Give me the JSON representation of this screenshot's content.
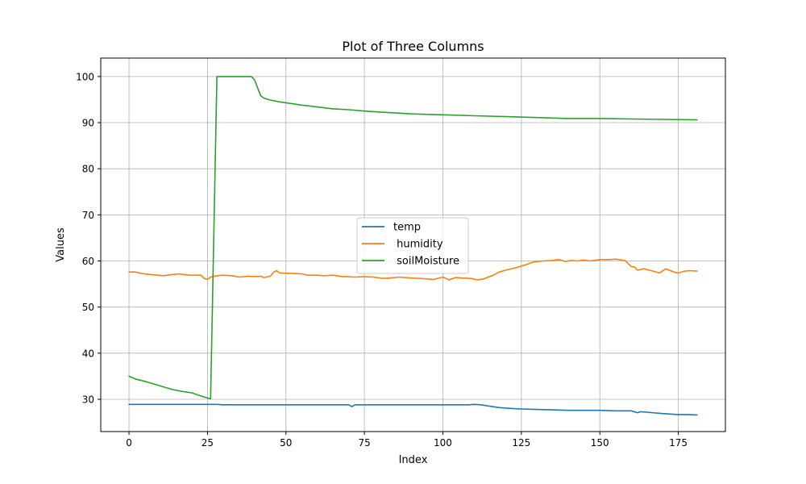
{
  "chart_data": {
    "type": "line",
    "title": "Plot of Three Columns",
    "xlabel": "Index",
    "ylabel": "Values",
    "xlim": [
      -9,
      190
    ],
    "ylim": [
      23,
      104
    ],
    "xticks": [
      0,
      25,
      50,
      75,
      100,
      125,
      150,
      175
    ],
    "yticks": [
      30,
      40,
      50,
      60,
      70,
      80,
      90,
      100
    ],
    "grid": true,
    "legend_position": "center",
    "series": [
      {
        "name": "temp",
        "color": "#1f77b4",
        "points": [
          [
            0,
            28.9
          ],
          [
            20,
            28.9
          ],
          [
            28,
            28.9
          ],
          [
            30,
            28.8
          ],
          [
            70,
            28.8
          ],
          [
            71,
            28.4
          ],
          [
            72,
            28.8
          ],
          [
            108,
            28.8
          ],
          [
            110,
            28.9
          ],
          [
            112,
            28.8
          ],
          [
            115,
            28.5
          ],
          [
            118,
            28.2
          ],
          [
            122,
            28.0
          ],
          [
            125,
            27.9
          ],
          [
            130,
            27.8
          ],
          [
            135,
            27.7
          ],
          [
            140,
            27.6
          ],
          [
            150,
            27.6
          ],
          [
            155,
            27.5
          ],
          [
            160,
            27.5
          ],
          [
            162,
            27.1
          ],
          [
            163,
            27.3
          ],
          [
            165,
            27.2
          ],
          [
            170,
            26.9
          ],
          [
            175,
            26.7
          ],
          [
            178,
            26.7
          ],
          [
            181,
            26.6
          ]
        ]
      },
      {
        "name": " humidity",
        "color": "#ff7f0e",
        "points": [
          [
            0,
            57.6
          ],
          [
            2,
            57.6
          ],
          [
            4,
            57.3
          ],
          [
            6,
            57.1
          ],
          [
            8,
            57.0
          ],
          [
            11,
            56.8
          ],
          [
            13,
            57.0
          ],
          [
            16,
            57.2
          ],
          [
            18,
            57.0
          ],
          [
            20,
            56.9
          ],
          [
            23,
            56.9
          ],
          [
            24,
            56.2
          ],
          [
            25,
            56.0
          ],
          [
            26,
            56.5
          ],
          [
            28,
            56.8
          ],
          [
            30,
            56.9
          ],
          [
            33,
            56.8
          ],
          [
            35,
            56.5
          ],
          [
            38,
            56.7
          ],
          [
            40,
            56.6
          ],
          [
            42,
            56.7
          ],
          [
            43,
            56.4
          ],
          [
            45,
            56.7
          ],
          [
            46,
            57.5
          ],
          [
            47,
            57.9
          ],
          [
            48,
            57.4
          ],
          [
            52,
            57.3
          ],
          [
            55,
            57.2
          ],
          [
            57,
            56.9
          ],
          [
            60,
            56.9
          ],
          [
            62,
            56.8
          ],
          [
            65,
            56.9
          ],
          [
            68,
            56.6
          ],
          [
            70,
            56.6
          ],
          [
            72,
            56.5
          ],
          [
            75,
            56.6
          ],
          [
            78,
            56.5
          ],
          [
            81,
            56.2
          ],
          [
            83,
            56.3
          ],
          [
            86,
            56.5
          ],
          [
            88,
            56.4
          ],
          [
            90,
            56.3
          ],
          [
            93,
            56.2
          ],
          [
            95,
            56.1
          ],
          [
            97,
            56.0
          ],
          [
            100,
            56.5
          ],
          [
            102,
            55.9
          ],
          [
            104,
            56.4
          ],
          [
            106,
            56.3
          ],
          [
            109,
            56.2
          ],
          [
            111,
            55.9
          ],
          [
            113,
            56.1
          ],
          [
            116,
            56.9
          ],
          [
            118,
            57.6
          ],
          [
            120,
            58.0
          ],
          [
            123,
            58.5
          ],
          [
            126,
            59.1
          ],
          [
            129,
            59.8
          ],
          [
            132,
            60.0
          ],
          [
            135,
            60.1
          ],
          [
            137,
            60.3
          ],
          [
            139,
            59.9
          ],
          [
            141,
            60.1
          ],
          [
            143,
            60.0
          ],
          [
            145,
            60.2
          ],
          [
            147,
            60.0
          ],
          [
            150,
            60.3
          ],
          [
            153,
            60.3
          ],
          [
            155,
            60.4
          ],
          [
            158,
            60.1
          ],
          [
            160,
            58.8
          ],
          [
            161,
            58.7
          ],
          [
            162,
            58.0
          ],
          [
            164,
            58.3
          ],
          [
            167,
            57.8
          ],
          [
            169,
            57.4
          ],
          [
            171,
            58.3
          ],
          [
            174,
            57.5
          ],
          [
            175,
            57.4
          ],
          [
            177,
            57.8
          ],
          [
            179,
            57.9
          ],
          [
            181,
            57.8
          ]
        ]
      },
      {
        "name": " soilMoisture",
        "color": "#2ca02c",
        "points": [
          [
            0,
            35.0
          ],
          [
            2,
            34.4
          ],
          [
            5,
            33.9
          ],
          [
            8,
            33.3
          ],
          [
            11,
            32.7
          ],
          [
            14,
            32.1
          ],
          [
            17,
            31.7
          ],
          [
            20,
            31.4
          ],
          [
            23,
            30.7
          ],
          [
            26,
            30.1
          ],
          [
            28,
            100.0
          ],
          [
            30,
            100.0
          ],
          [
            35,
            100.0
          ],
          [
            39,
            100.0
          ],
          [
            40,
            99.3
          ],
          [
            41,
            97.5
          ],
          [
            42,
            95.8
          ],
          [
            43,
            95.3
          ],
          [
            45,
            94.9
          ],
          [
            48,
            94.5
          ],
          [
            52,
            94.1
          ],
          [
            55,
            93.8
          ],
          [
            60,
            93.4
          ],
          [
            65,
            93.0
          ],
          [
            70,
            92.8
          ],
          [
            75,
            92.5
          ],
          [
            80,
            92.3
          ],
          [
            90,
            91.9
          ],
          [
            100,
            91.7
          ],
          [
            110,
            91.5
          ],
          [
            120,
            91.3
          ],
          [
            130,
            91.1
          ],
          [
            140,
            90.9
          ],
          [
            150,
            90.9
          ],
          [
            160,
            90.8
          ],
          [
            170,
            90.7
          ],
          [
            181,
            90.6
          ]
        ]
      }
    ]
  }
}
